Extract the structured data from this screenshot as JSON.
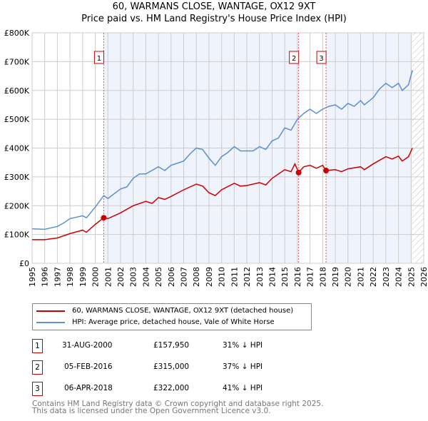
{
  "chart_data": {
    "type": "line",
    "title": "60, WARMANS CLOSE, WANTAGE, OX12 9XT",
    "subtitle": "Price paid vs. HM Land Registry's House Price Index (HPI)",
    "xlim": [
      1995,
      2026
    ],
    "ylim": [
      0,
      800000
    ],
    "y_ticks": [
      "£0",
      "£100K",
      "£200K",
      "£300K",
      "£400K",
      "£500K",
      "£600K",
      "£700K",
      "£800K"
    ],
    "x_ticks": [
      "1995",
      "1996",
      "1997",
      "1998",
      "1999",
      "2000",
      "2001",
      "2002",
      "2003",
      "2004",
      "2005",
      "2006",
      "2007",
      "2008",
      "2009",
      "2010",
      "2011",
      "2012",
      "2013",
      "2014",
      "2015",
      "2016",
      "2017",
      "2018",
      "2019",
      "2020",
      "2021",
      "2022",
      "2023",
      "2024",
      "2025",
      "2026"
    ],
    "grid": true,
    "series": [
      {
        "name": "60, WARMANS CLOSE, WANTAGE, OX12 9XT (detached house)",
        "color": "#cc0000",
        "x": [
          1995,
          1996,
          1997,
          1998,
          1999,
          1999.3,
          2000,
          2000.67,
          2001,
          2002,
          2003,
          2004,
          2004.5,
          2005,
          2005.5,
          2006,
          2007,
          2008,
          2008.5,
          2009,
          2009.5,
          2010,
          2011,
          2011.5,
          2012,
          2013,
          2013.5,
          2014,
          2015,
          2015.5,
          2015.8,
          2016.1,
          2016.5,
          2017,
          2017.5,
          2018,
          2018.27,
          2019,
          2019.5,
          2020,
          2021,
          2021.3,
          2022,
          2023,
          2023.5,
          2024,
          2024.3,
          2024.8,
          2025.1
        ],
        "y": [
          82000,
          82000,
          88000,
          103000,
          115000,
          108000,
          135000,
          157950,
          155000,
          175000,
          200000,
          215000,
          208000,
          228000,
          222000,
          232000,
          255000,
          275000,
          268000,
          245000,
          235000,
          255000,
          278000,
          268000,
          270000,
          280000,
          272000,
          295000,
          325000,
          318000,
          345000,
          315000,
          335000,
          340000,
          330000,
          340000,
          322000,
          325000,
          318000,
          328000,
          335000,
          325000,
          345000,
          370000,
          362000,
          372000,
          355000,
          370000,
          400000
        ]
      },
      {
        "name": "HPI: Average price, detached house, Vale of White Horse",
        "color": "#5b8fd0",
        "x": [
          1995,
          1996,
          1997,
          1997.5,
          1998,
          1999,
          1999.3,
          2000,
          2000.67,
          2001,
          2002,
          2002.5,
          2003,
          2003.5,
          2004,
          2005,
          2005.5,
          2006,
          2007,
          2007.5,
          2008,
          2008.5,
          2009,
          2009.5,
          2010,
          2010.5,
          2011,
          2011.5,
          2012,
          2012.5,
          2013,
          2013.5,
          2014,
          2014.5,
          2015,
          2015.5,
          2016,
          2016.5,
          2017,
          2017.5,
          2018,
          2018.5,
          2019,
          2019.5,
          2020,
          2020.5,
          2021,
          2021.3,
          2022,
          2022.5,
          2023,
          2023.5,
          2024,
          2024.3,
          2024.8,
          2025.1
        ],
        "y": [
          120000,
          118000,
          128000,
          140000,
          155000,
          165000,
          158000,
          195000,
          235000,
          225000,
          258000,
          265000,
          295000,
          310000,
          310000,
          335000,
          322000,
          340000,
          355000,
          380000,
          400000,
          395000,
          365000,
          340000,
          370000,
          385000,
          405000,
          390000,
          390000,
          390000,
          405000,
          395000,
          425000,
          435000,
          470000,
          462000,
          500000,
          520000,
          535000,
          520000,
          535000,
          545000,
          550000,
          535000,
          555000,
          545000,
          565000,
          550000,
          575000,
          605000,
          625000,
          610000,
          625000,
          600000,
          620000,
          670000
        ]
      }
    ],
    "sales": [
      {
        "label": "1",
        "x": 2000.67,
        "y": 157950
      },
      {
        "label": "2",
        "x": 2016.1,
        "y": 315000
      },
      {
        "label": "3",
        "x": 2018.27,
        "y": 322000
      }
    ],
    "shaded_ranges": [
      [
        2000.67,
        2016.1
      ],
      [
        2018.27,
        2025.1
      ]
    ],
    "forecast_from": 2025.1
  },
  "legend": {
    "property": "60, WARMANS CLOSE, WANTAGE, OX12 9XT (detached house)",
    "hpi": "HPI: Average price, detached house, Vale of White Horse"
  },
  "table": [
    {
      "num": "1",
      "date": "31-AUG-2000",
      "price": "£157,950",
      "delta": "31% ↓ HPI"
    },
    {
      "num": "2",
      "date": "05-FEB-2016",
      "price": "£315,000",
      "delta": "37% ↓ HPI"
    },
    {
      "num": "3",
      "date": "06-APR-2018",
      "price": "£322,000",
      "delta": "41% ↓ HPI"
    }
  ],
  "footer": {
    "line1": "Contains HM Land Registry data © Crown copyright and database right 2025.",
    "line2": "This data is licensed under the Open Government Licence v3.0."
  }
}
